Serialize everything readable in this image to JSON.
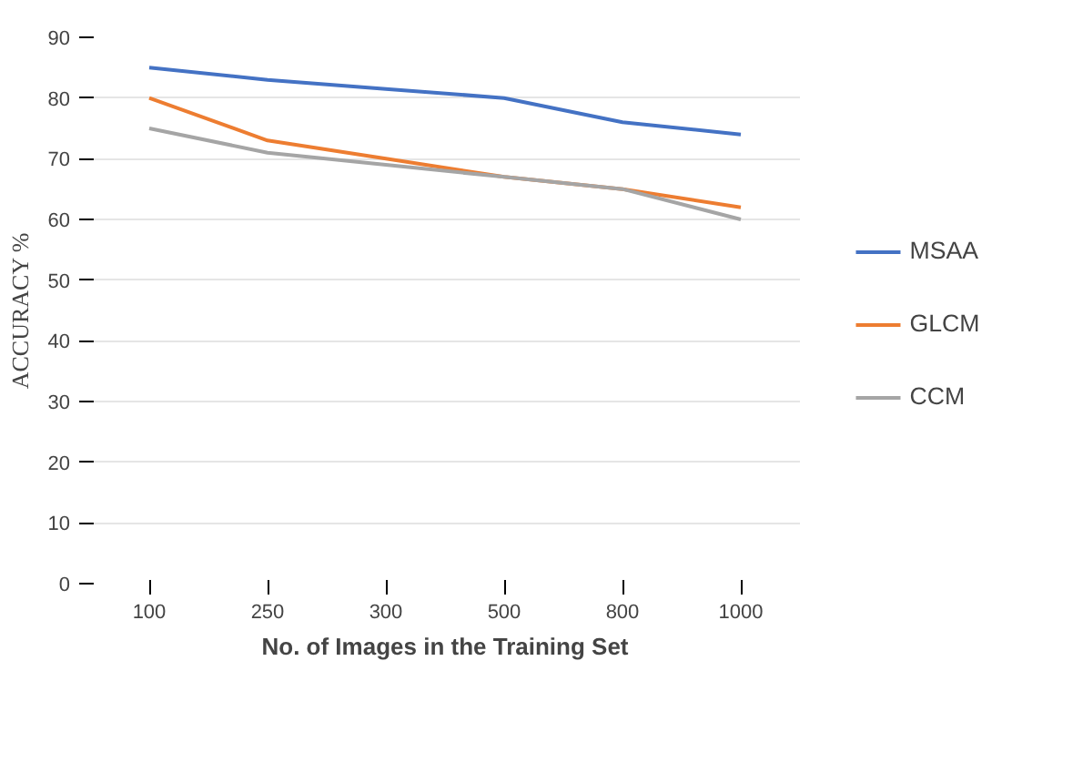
{
  "chart_data": {
    "type": "line",
    "xlabel": "No. of Images in the Training Set",
    "ylabel": "ACCURACY %",
    "categories": [
      "100",
      "250",
      "300",
      "500",
      "800",
      "1000"
    ],
    "series": [
      {
        "name": "MSAA",
        "color": "#4472c4",
        "values": [
          85,
          83,
          81.5,
          80,
          76,
          74
        ]
      },
      {
        "name": "GLCM",
        "color": "#ed7d31",
        "values": [
          80,
          73,
          70,
          67,
          65,
          62
        ]
      },
      {
        "name": "CCM",
        "color": "#a5a5a5",
        "values": [
          75,
          71,
          69,
          67,
          65,
          60
        ]
      }
    ],
    "ylim": [
      0,
      90
    ],
    "yticks": [
      0,
      10,
      20,
      30,
      40,
      50,
      60,
      70,
      80,
      90
    ],
    "grid": "y",
    "legend": "right",
    "marker": "none",
    "line_style": "solid"
  }
}
